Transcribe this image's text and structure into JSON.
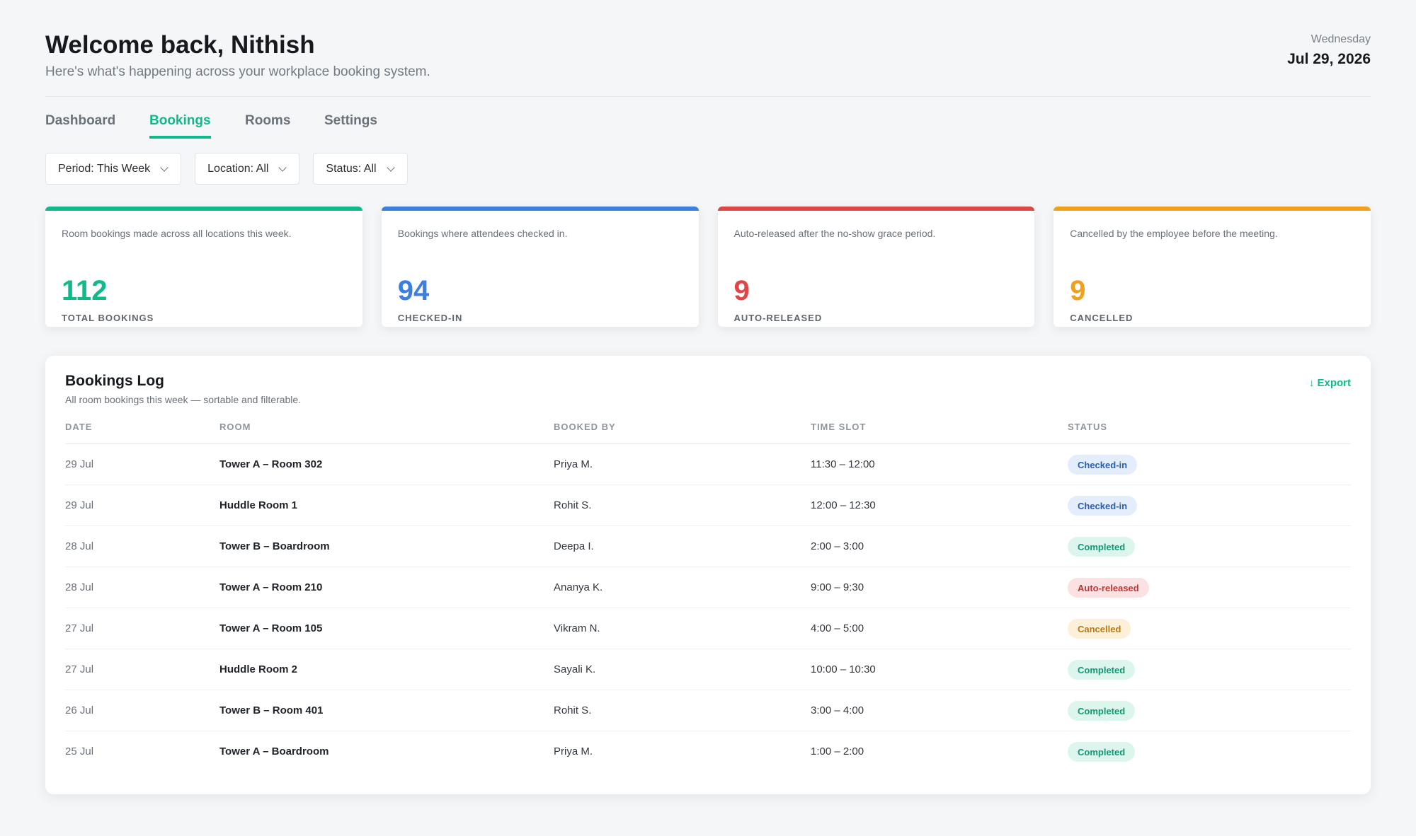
{
  "header": {
    "title": "Welcome back, Nithish",
    "subtitle": "Here's what's happening across your workplace booking system.",
    "day": "Wednesday",
    "date": "Jul 29, 2026"
  },
  "tabs": [
    {
      "label": "Dashboard",
      "active": false
    },
    {
      "label": "Bookings",
      "active": true
    },
    {
      "label": "Rooms",
      "active": false
    },
    {
      "label": "Settings",
      "active": false
    }
  ],
  "filters": [
    {
      "label": "Period: This Week"
    },
    {
      "label": "Location: All"
    },
    {
      "label": "Status: All"
    }
  ],
  "stats": [
    {
      "description": "Room bookings made across all locations this week.",
      "value": "112",
      "label": "TOTAL BOOKINGS",
      "color": "#10b98a"
    },
    {
      "description": "Bookings where attendees checked in.",
      "value": "94",
      "label": "CHECKED-IN",
      "color": "#3b7fe0"
    },
    {
      "description": "Auto-released after the no-show grace period.",
      "value": "9",
      "label": "AUTO-RELEASED",
      "color": "#e04646"
    },
    {
      "description": "Cancelled by the employee before the meeting.",
      "value": "9",
      "label": "CANCELLED",
      "color": "#f0a01a"
    }
  ],
  "bookings_log": {
    "title": "Bookings Log",
    "subtitle": "All room bookings this week — sortable and filterable.",
    "export_label": "↓ Export",
    "columns": [
      "DATE",
      "ROOM",
      "BOOKED BY",
      "TIME SLOT",
      "STATUS"
    ],
    "rows": [
      {
        "date": "29 Jul",
        "room": "Tower A – Room 302",
        "booked_by": "Priya M.",
        "time_slot": "11:30 – 12:00",
        "status": "Checked-in"
      },
      {
        "date": "29 Jul",
        "room": "Huddle Room 1",
        "booked_by": "Rohit S.",
        "time_slot": "12:00 – 12:30",
        "status": "Checked-in"
      },
      {
        "date": "28 Jul",
        "room": "Tower B – Boardroom",
        "booked_by": "Deepa I.",
        "time_slot": "2:00 – 3:00",
        "status": "Completed"
      },
      {
        "date": "28 Jul",
        "room": "Tower A – Room 210",
        "booked_by": "Ananya K.",
        "time_slot": "9:00 – 9:30",
        "status": "Auto-released"
      },
      {
        "date": "27 Jul",
        "room": "Tower A – Room 105",
        "booked_by": "Vikram N.",
        "time_slot": "4:00 – 5:00",
        "status": "Cancelled"
      },
      {
        "date": "27 Jul",
        "room": "Huddle Room 2",
        "booked_by": "Sayali K.",
        "time_slot": "10:00 – 10:30",
        "status": "Completed"
      },
      {
        "date": "26 Jul",
        "room": "Tower B – Room 401",
        "booked_by": "Rohit S.",
        "time_slot": "3:00 – 4:00",
        "status": "Completed"
      },
      {
        "date": "25 Jul",
        "room": "Tower A – Boardroom",
        "booked_by": "Priya M.",
        "time_slot": "1:00 – 2:00",
        "status": "Completed"
      }
    ]
  },
  "status_colors": {
    "Checked-in": {
      "bg": "#e3edfb",
      "fg": "#2a5fb0"
    },
    "Completed": {
      "bg": "#dcf6ee",
      "fg": "#0f9a72"
    },
    "Auto-released": {
      "bg": "#fbe1e1",
      "fg": "#c23535"
    },
    "Cancelled": {
      "bg": "#fcf0d8",
      "fg": "#b7790f"
    }
  }
}
